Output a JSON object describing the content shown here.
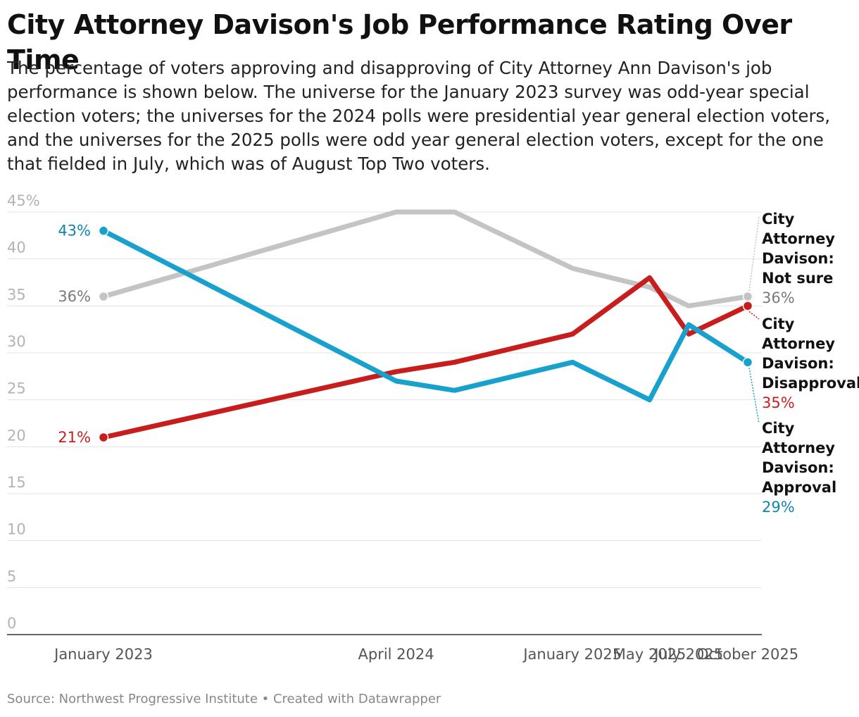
{
  "header": {
    "title": "City Attorney Davison's Job Performance Rating Over Time",
    "subtitle": "The percentage of voters approving and disapproving of City Attorney Ann Davison's job performance is shown below. The universe for the January 2023 survey was odd-year special election voters; the universes for the 2024 polls were presidential year general election voters, and the universes for the 2025 polls were odd year general election voters, except for the one that fielded in July, which was of August Top Two voters."
  },
  "footer": {
    "source": "Source: Northwest Progressive Institute • Created with Datawrapper"
  },
  "chart_data": {
    "type": "line",
    "x": [
      "2023-01-15",
      "2024-04-15",
      "2024-07-15",
      "2025-01-15",
      "2025-05-15",
      "2025-07-15",
      "2025-10-15"
    ],
    "x_tick_labels": [
      {
        "date": "2023-01-15",
        "label": "January 2023"
      },
      {
        "date": "2024-04-15",
        "label": "April 2024"
      },
      {
        "date": "2025-01-15",
        "label": "January 2025"
      },
      {
        "date": "2025-05-15",
        "label": "May 2025"
      },
      {
        "date": "2025-07-15",
        "label": "July 2025"
      },
      {
        "date": "2025-10-15",
        "label": "October 2025"
      }
    ],
    "y_ticks": [
      "0",
      "5",
      "10",
      "15",
      "20",
      "25",
      "30",
      "35",
      "40",
      "45%"
    ],
    "ylim": [
      0,
      45
    ],
    "grid": true,
    "series": [
      {
        "name": "City Attorney Davison: Not sure",
        "name_lines": [
          "City",
          "Attorney",
          "Davison:",
          "Not sure"
        ],
        "color": "#c4c4c4",
        "label_color": "#7a7a7a",
        "values": [
          36,
          45,
          45,
          39,
          37,
          35,
          36
        ],
        "start_label": "36%",
        "end_label": "36%"
      },
      {
        "name": "City Attorney Davison: Disapproval",
        "name_lines": [
          "City",
          "Attorney",
          "Davison:",
          "Disapproval"
        ],
        "color": "#c71e1d",
        "label_color": "#c71e1d",
        "values": [
          21,
          28,
          29,
          32,
          38,
          32,
          35
        ],
        "start_label": "21%",
        "end_label": "35%"
      },
      {
        "name": "City Attorney Davison: Approval",
        "name_lines": [
          "City",
          "Attorney",
          "Davison:",
          "Approval"
        ],
        "color": "#18a1cd",
        "label_color": "#0e86b0",
        "values": [
          43,
          27,
          26,
          29,
          25,
          33,
          29
        ],
        "start_label": "43%",
        "end_label": "29%"
      }
    ]
  }
}
